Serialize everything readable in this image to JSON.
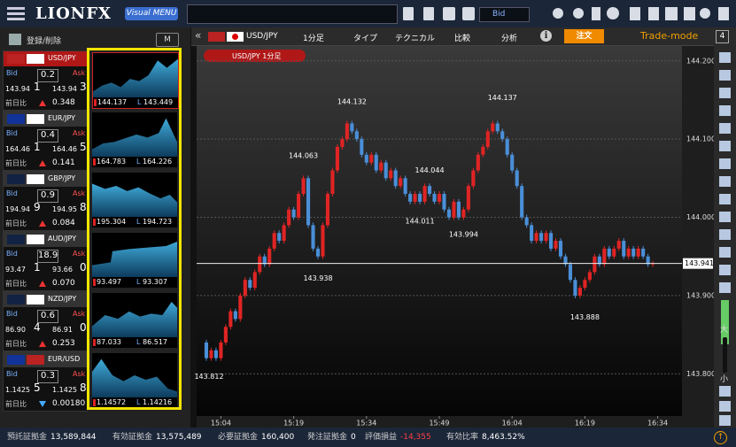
{
  "header": {
    "logo": "LIONFX",
    "menu_button": "Visual MENU",
    "price_select": "Bid"
  },
  "sidebar": {
    "edit_label": "登録/削除",
    "mode_button": "M",
    "bid_label": "Bid",
    "ask_label": "Ask",
    "change_label": "前日比",
    "low_label": "L",
    "pairs": [
      {
        "name": "USD/JPY",
        "bid_main": "143.94",
        "bid_pip": "1",
        "spread": "0.2",
        "ask_main": "143.94",
        "ask_pip": "3",
        "change": "0.348",
        "direction": "up",
        "high": "144.137",
        "low": "143.449"
      },
      {
        "name": "EUR/JPY",
        "bid_main": "164.46",
        "bid_pip": "1",
        "spread": "0.4",
        "ask_main": "164.46",
        "ask_pip": "5",
        "change": "0.141",
        "direction": "up",
        "high": "164.783",
        "low": "164.226"
      },
      {
        "name": "GBP/JPY",
        "bid_main": "194.94",
        "bid_pip": "9",
        "spread": "0.9",
        "ask_main": "194.95",
        "ask_pip": "8",
        "change": "0.084",
        "direction": "up",
        "high": "195.304",
        "low": "194.723"
      },
      {
        "name": "AUD/JPY",
        "bid_main": "93.47",
        "bid_pip": "1",
        "spread": "18.9",
        "ask_main": "93.66",
        "ask_pip": "0",
        "change": "0.070",
        "direction": "up",
        "high": "93.497",
        "low": "93.307"
      },
      {
        "name": "NZD/JPY",
        "bid_main": "86.90",
        "bid_pip": "4",
        "spread": "0.6",
        "ask_main": "86.91",
        "ask_pip": "0",
        "change": "0.253",
        "direction": "up",
        "high": "87.033",
        "low": "86.517"
      },
      {
        "name": "EUR/USD",
        "bid_main": "1.1425",
        "bid_pip": "5",
        "spread": "0.3",
        "ask_main": "1.1425",
        "ask_pip": "8",
        "change": "0.00180",
        "direction": "down",
        "high": "1.14572",
        "low": "1.14216"
      }
    ]
  },
  "toolbar": {
    "symbol": "USD/JPY",
    "interval": "1分足",
    "items": [
      "タイプ",
      "テクニカル",
      "比較",
      "分析"
    ],
    "order_button": "注文",
    "mode": "Trade-mode",
    "layout_number": "4"
  },
  "chart_data": {
    "type": "candlestick",
    "title": "USD/JPY 1分足",
    "xlim": [
      -1,
      99
    ],
    "ylim": [
      143.746,
      144.219
    ],
    "yticks": [
      {
        "value": 144.2,
        "label": "144.200"
      },
      {
        "value": 144.1,
        "label": "144.100"
      },
      {
        "value": 144.0,
        "label": "144.000"
      },
      {
        "value": 143.9,
        "label": "143.900"
      },
      {
        "value": 143.8,
        "label": "143.800"
      }
    ],
    "xticks": [
      {
        "value": 4,
        "label": "15:04"
      },
      {
        "value": 19,
        "label": "15:19"
      },
      {
        "value": 34,
        "label": "15:34"
      },
      {
        "value": 49,
        "label": "15:49"
      },
      {
        "value": 64,
        "label": "16:04"
      },
      {
        "value": 79,
        "label": "16:19"
      },
      {
        "value": 94,
        "label": "16:34"
      }
    ],
    "grid": true,
    "up_color": "#e02424",
    "down_color": "#4a8fd8",
    "closes": [
      143.84,
      143.82,
      143.83,
      143.82,
      143.84,
      143.86,
      143.88,
      143.87,
      143.9,
      143.92,
      143.91,
      143.93,
      143.95,
      143.94,
      143.96,
      143.98,
      143.97,
      143.99,
      144.01,
      144.0,
      144.03,
      144.05,
      143.99,
      143.96,
      143.95,
      143.99,
      144.03,
      144.06,
      144.09,
      144.1,
      144.12,
      144.11,
      144.1,
      144.08,
      144.07,
      144.08,
      144.06,
      144.07,
      144.05,
      144.06,
      144.04,
      144.05,
      144.03,
      144.02,
      144.03,
      144.02,
      144.04,
      144.03,
      144.02,
      144.03,
      144.01,
      144.0,
      144.02,
      144.0,
      144.01,
      144.04,
      144.06,
      144.08,
      144.09,
      144.11,
      144.12,
      144.11,
      144.1,
      144.08,
      144.06,
      144.04,
      144.0,
      143.99,
      143.97,
      143.98,
      143.97,
      143.98,
      143.96,
      143.97,
      143.95,
      143.94,
      143.92,
      143.9,
      143.91,
      143.92,
      143.93,
      143.95,
      143.94,
      143.96,
      143.95,
      143.96,
      143.97,
      143.95,
      143.96,
      143.95,
      143.96,
      143.95,
      143.94,
      143.941
    ],
    "highs": [
      {
        "x": 21,
        "y": 144.063
      },
      {
        "x": 31,
        "y": 144.132
      },
      {
        "x": 47,
        "y": 144.044
      },
      {
        "x": 62,
        "y": 144.137
      }
    ],
    "lows": [
      {
        "x": 1,
        "y": 143.812
      },
      {
        "x": 24,
        "y": 143.938
      },
      {
        "x": 45,
        "y": 144.011
      },
      {
        "x": 54,
        "y": 143.994
      },
      {
        "x": 79,
        "y": 143.888
      }
    ],
    "current": 143.941
  },
  "zoom": {
    "in": "大",
    "out": "小"
  },
  "footer": [
    {
      "label": "預託証拠金",
      "value": "13,589,844"
    },
    {
      "label": "有効証拠金",
      "value": "13,575,489"
    },
    {
      "label": "必要証拠金",
      "value": "160,400"
    },
    {
      "label": "発注証拠金",
      "value": "0"
    },
    {
      "label": "評価損益",
      "value": "-14,355"
    },
    {
      "label": "有効比率",
      "value": "8,463.52%"
    }
  ]
}
